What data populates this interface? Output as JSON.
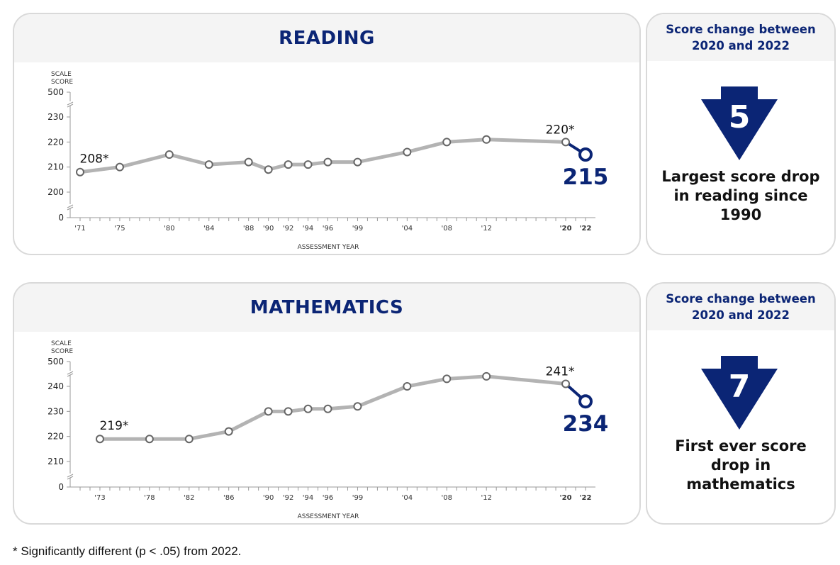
{
  "chart_data": [
    {
      "type": "line",
      "title": "READING",
      "ylabel": "SCALE SCORE",
      "xlabel": "ASSESSMENT YEAR",
      "yticks": [
        "0",
        "200",
        "210",
        "220",
        "230",
        "500"
      ],
      "y_break": true,
      "ylim": [
        195,
        235
      ],
      "x_ticks": [
        "'71",
        "'75",
        "'80",
        "'84",
        "'88",
        "'90",
        "'92",
        "'94",
        "'96",
        "'99",
        "'04",
        "'08",
        "'12",
        "'20",
        "'22"
      ],
      "series": [
        {
          "x": [
            1971,
            1975,
            1980,
            1984,
            1988,
            1990,
            1992,
            1994,
            1996,
            1999,
            2004,
            2008,
            2012,
            2020
          ],
          "values": [
            208,
            210,
            215,
            211,
            212,
            209,
            211,
            211,
            212,
            212,
            216,
            220,
            221,
            220
          ],
          "color": "#b3b3b3"
        },
        {
          "x": [
            2020,
            2022
          ],
          "values": [
            220,
            215
          ],
          "color": "#0b2575"
        }
      ],
      "labels": [
        {
          "x": 1971,
          "y": 208,
          "text": "208*"
        },
        {
          "x": 2020,
          "y": 220,
          "text": "220*"
        },
        {
          "x": 2022,
          "y": 215,
          "text": "215",
          "emphasis": true
        }
      ]
    },
    {
      "type": "line",
      "title": "MATHEMATICS",
      "ylabel": "SCALE SCORE",
      "xlabel": "ASSESSMENT YEAR",
      "yticks": [
        "0",
        "210",
        "220",
        "230",
        "240",
        "500"
      ],
      "y_break": true,
      "ylim": [
        205,
        245
      ],
      "x_ticks": [
        "'73",
        "'78",
        "'82",
        "'86",
        "'90",
        "'92",
        "'94",
        "'96",
        "'99",
        "'04",
        "'08",
        "'12",
        "'20",
        "'22"
      ],
      "series": [
        {
          "x": [
            1973,
            1978,
            1982,
            1986,
            1990,
            1992,
            1994,
            1996,
            1999,
            2004,
            2008,
            2012,
            2020
          ],
          "values": [
            219,
            219,
            219,
            222,
            230,
            230,
            231,
            231,
            232,
            240,
            243,
            244,
            241
          ],
          "color": "#b3b3b3"
        },
        {
          "x": [
            2020,
            2022
          ],
          "values": [
            241,
            234
          ],
          "color": "#0b2575"
        }
      ],
      "labels": [
        {
          "x": 1973,
          "y": 219,
          "text": "219*"
        },
        {
          "x": 2020,
          "y": 241,
          "text": "241*"
        },
        {
          "x": 2022,
          "y": 234,
          "text": "234",
          "emphasis": true
        }
      ]
    }
  ],
  "panels": {
    "reading": {
      "title": "READING",
      "side_header": "Score change between 2020 and 2022",
      "change": "5",
      "caption": "Largest score drop in reading since 1990"
    },
    "math": {
      "title": "MATHEMATICS",
      "side_header": "Score change between 2020 and 2022",
      "change": "7",
      "caption": "First ever score drop in mathematics"
    }
  },
  "axis_text": {
    "scale_line1": "SCALE",
    "scale_line2": "SCORE",
    "xlabel": "ASSESSMENT YEAR"
  },
  "colors": {
    "navy": "#0b2575",
    "series_gray": "#b3b3b3",
    "header_bg": "#f4f4f4"
  },
  "footnote": "* Significantly different (p < .05) from 2022."
}
